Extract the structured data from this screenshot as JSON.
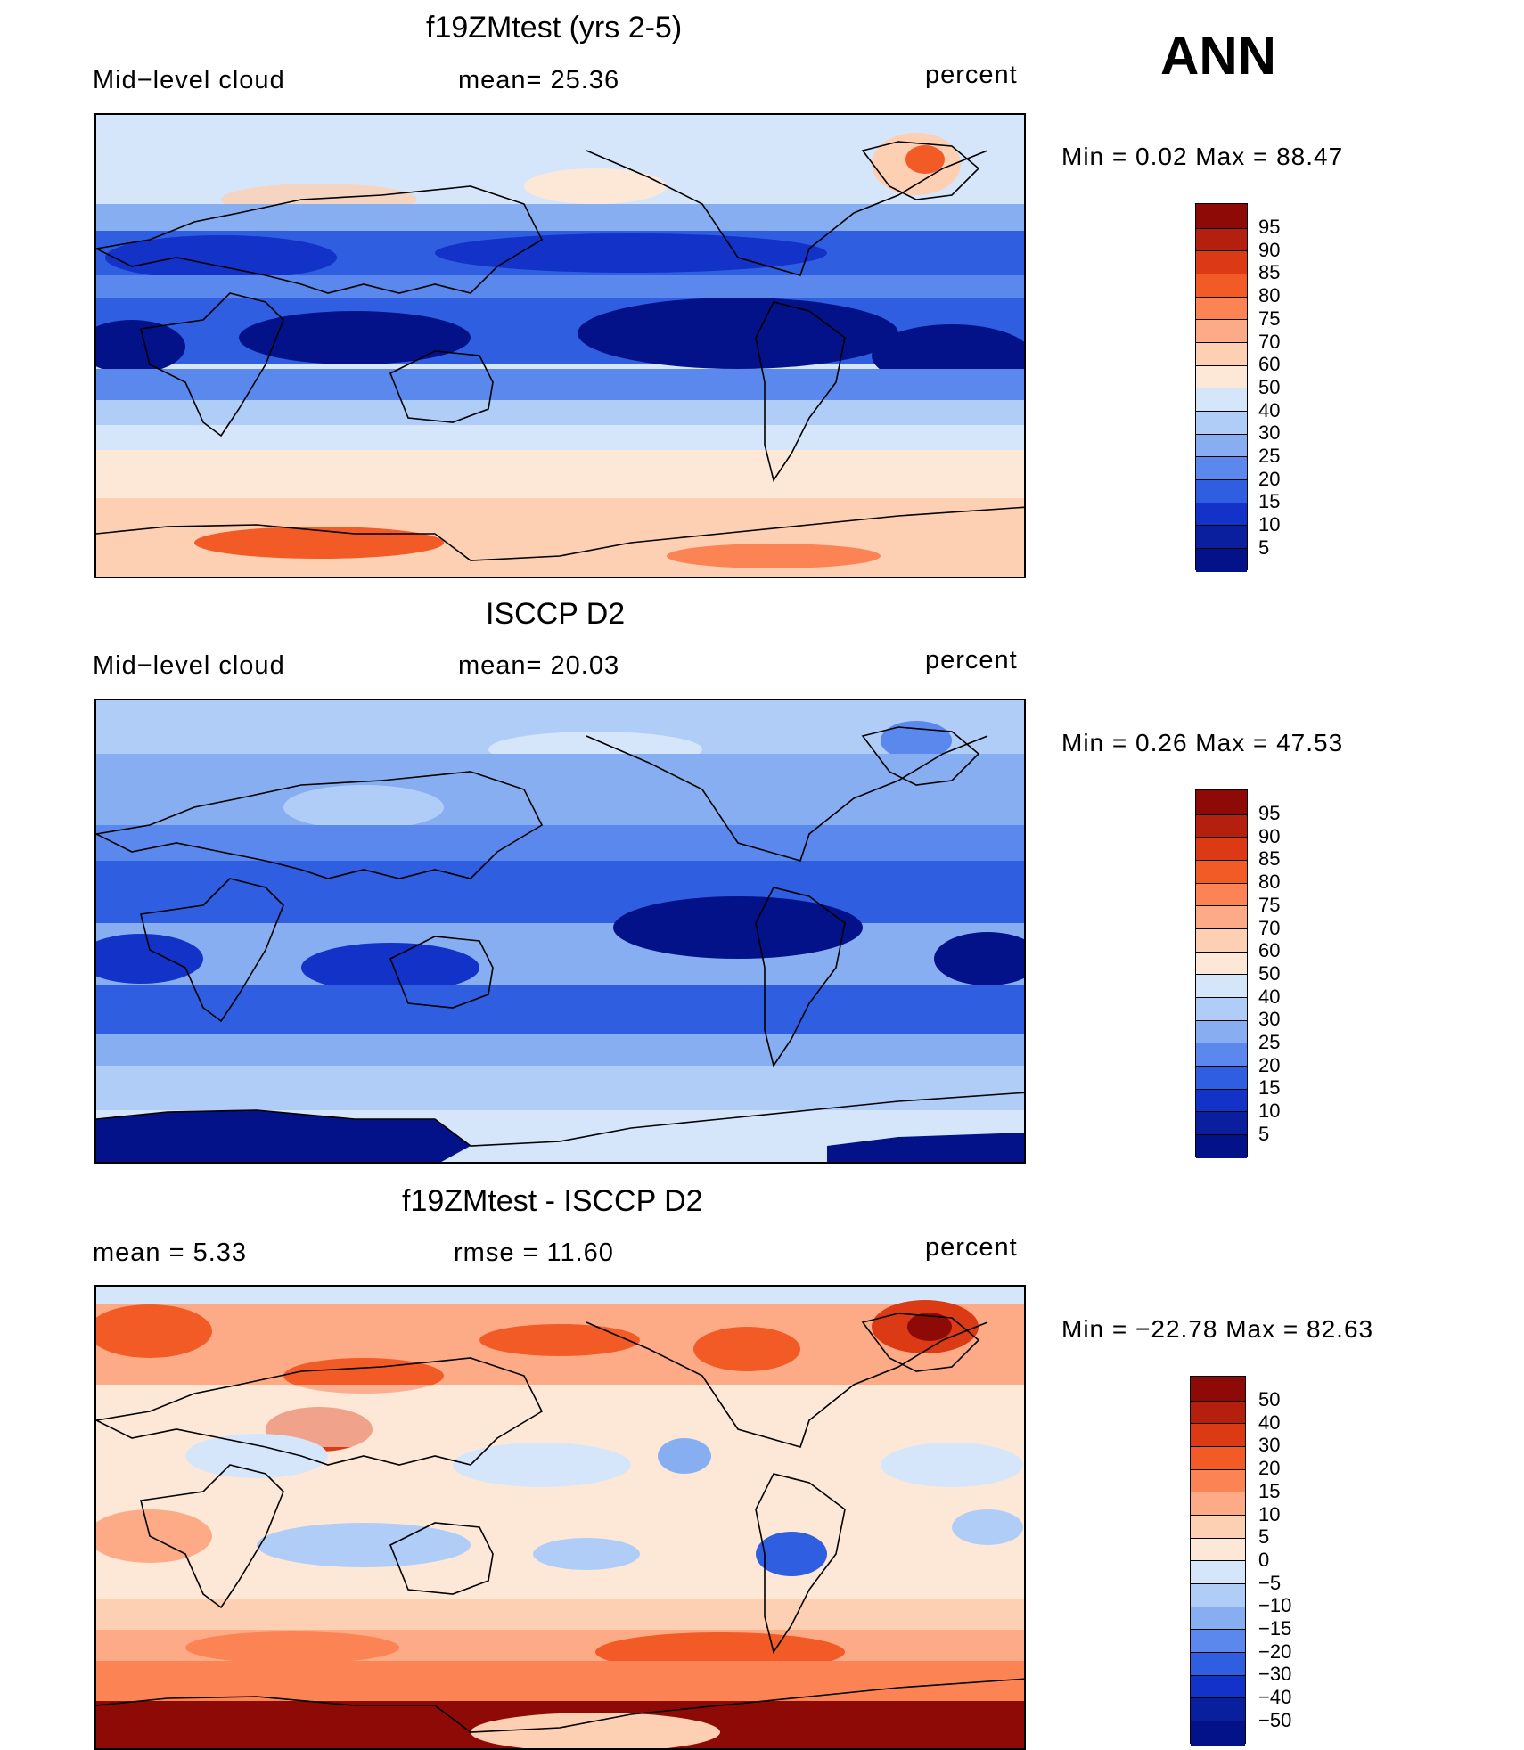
{
  "season": "ANN",
  "panels": [
    {
      "id": "model",
      "title": "f19ZMtest (yrs 2-5)",
      "left_label": "Mid−level cloud",
      "center_label": "mean=   25.36",
      "units": "percent",
      "minmax": "Min  =     0.02  Max  =    88.47",
      "colorbar": [
        "95",
        "90",
        "85",
        "80",
        "75",
        "70",
        "60",
        "50",
        "40",
        "30",
        "25",
        "20",
        "15",
        "10",
        "5"
      ],
      "palette": [
        "#8e0a06",
        "#b5200e",
        "#db3a14",
        "#f25a26",
        "#fb8354",
        "#fdab86",
        "#fdcfb3",
        "#fde8d8",
        "#d5e6fb",
        "#b0cdf8",
        "#88aef2",
        "#5b88ec",
        "#2f5ee0",
        "#1232c8",
        "#04128a"
      ]
    },
    {
      "id": "obs",
      "title": "ISCCP D2",
      "left_label": "Mid−level cloud",
      "center_label": "mean=   20.03",
      "units": "percent",
      "minmax": "Min  =     0.26  Max  =    47.53",
      "colorbar": [
        "95",
        "90",
        "85",
        "80",
        "75",
        "70",
        "60",
        "50",
        "40",
        "30",
        "25",
        "20",
        "15",
        "10",
        "5"
      ],
      "palette": [
        "#8e0a06",
        "#b5200e",
        "#db3a14",
        "#f25a26",
        "#fb8354",
        "#fdab86",
        "#fdcfb3",
        "#fde8d8",
        "#d5e6fb",
        "#b0cdf8",
        "#88aef2",
        "#5b88ec",
        "#2f5ee0",
        "#1232c8",
        "#04128a"
      ]
    },
    {
      "id": "diff",
      "title": "f19ZMtest - ISCCP D2",
      "left_label": "mean  =     5.33",
      "center_label": "rmse  =    11.60",
      "units": "percent",
      "minmax": "Min  = −22.78  Max  =    82.63",
      "colorbar": [
        "50",
        "40",
        "30",
        "20",
        "15",
        "10",
        "5",
        "0",
        "−5",
        "−10",
        "−15",
        "−20",
        "−30",
        "−40",
        "−50"
      ],
      "palette": [
        "#8e0a06",
        "#b5200e",
        "#db3a14",
        "#f25a26",
        "#fb8354",
        "#fdab86",
        "#fdcfb3",
        "#fde8d8",
        "#ffffff",
        "#d5e6fb",
        "#b0cdf8",
        "#88aef2",
        "#5b88ec",
        "#2f5ee0",
        "#1232c8",
        "#04128a"
      ]
    }
  ]
}
